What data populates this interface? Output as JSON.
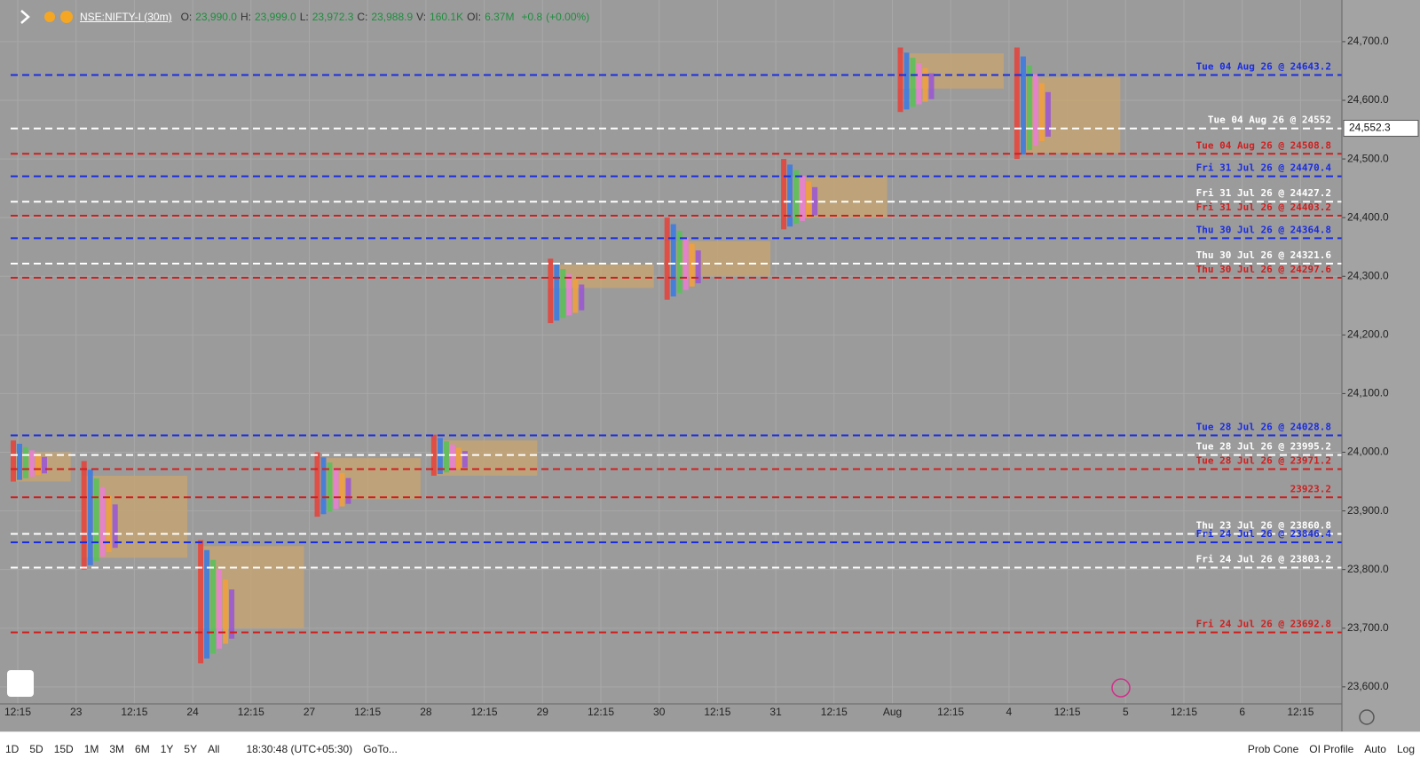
{
  "header": {
    "symbol": "NSE:NIFTY-I (30m)",
    "fields": [
      {
        "key": "O:",
        "value": "23,990.0"
      },
      {
        "key": "H:",
        "value": "23,999.0"
      },
      {
        "key": "L:",
        "value": "23,972.3"
      },
      {
        "key": "C:",
        "value": "23,988.9"
      },
      {
        "key": "V:",
        "value": "160.1K"
      },
      {
        "key": "OI:",
        "value": "6.37M"
      }
    ],
    "change": "+0.8",
    "change_pct": "(+0.00%)"
  },
  "price_axis": {
    "ylim": [
      23571,
      24771
    ],
    "ticks": [
      {
        "value": 24700,
        "label": "24,700.0"
      },
      {
        "value": 24600,
        "label": "24,600.0"
      },
      {
        "value": 24500,
        "label": "24,500.0"
      },
      {
        "value": 24400,
        "label": "24,400.0"
      },
      {
        "value": 24300,
        "label": "24,300.0"
      },
      {
        "value": 24200,
        "label": "24,200.0"
      },
      {
        "value": 24100,
        "label": "24,100.0"
      },
      {
        "value": 24000,
        "label": "24,000.0"
      },
      {
        "value": 23900,
        "label": "23,900.0"
      },
      {
        "value": 23800,
        "label": "23,800.0"
      },
      {
        "value": 23700,
        "label": "23,700.0"
      },
      {
        "value": 23600,
        "label": "23,600.0"
      }
    ],
    "current": {
      "value": 24552.3,
      "label": "24,552.3"
    }
  },
  "time_axis": [
    "12:15",
    "23",
    "12:15",
    "24",
    "12:15",
    "27",
    "12:15",
    "28",
    "12:15",
    "29",
    "12:15",
    "30",
    "12:15",
    "31",
    "12:15",
    "Aug",
    "12:15",
    "4",
    "12:15",
    "5",
    "12:15",
    "6",
    "12:15"
  ],
  "sessions": [
    {
      "high": 24020,
      "low": 23950,
      "vah": 24000,
      "val": 23950
    },
    {
      "high": 23985,
      "low": 23800,
      "vah": 23960,
      "val": 23820
    },
    {
      "high": 23850,
      "low": 23640,
      "vah": 23840,
      "val": 23700
    },
    {
      "high": 24000,
      "low": 23890,
      "vah": 23990,
      "val": 23920
    },
    {
      "high": 24030,
      "low": 23960,
      "vah": 24020,
      "val": 23960
    },
    {
      "high": 24330,
      "low": 24220,
      "vah": 24320,
      "val": 24280
    },
    {
      "high": 24400,
      "low": 24260,
      "vah": 24360,
      "val": 24300
    },
    {
      "high": 24500,
      "low": 24380,
      "vah": 24470,
      "val": 24400
    },
    {
      "high": 24690,
      "low": 24580,
      "vah": 24680,
      "val": 24620
    },
    {
      "high": 24690,
      "low": 24500,
      "vah": 24640,
      "val": 24510
    }
  ],
  "levels": [
    {
      "value": 24643.2,
      "label": "Tue 04 Aug 26 @ 24643.2",
      "color": "#1a2de0"
    },
    {
      "value": 24552,
      "label": "Tue 04 Aug 26 @ 24552",
      "color": "#ffffff"
    },
    {
      "value": 24508.8,
      "label": "Tue 04 Aug 26 @ 24508.8",
      "color": "#d01f1f"
    },
    {
      "value": 24470.4,
      "label": "Fri 31 Jul 26 @ 24470.4",
      "color": "#1a2de0"
    },
    {
      "value": 24427.2,
      "label": "Fri 31 Jul 26 @ 24427.2",
      "color": "#ffffff"
    },
    {
      "value": 24403.2,
      "label": "Fri 31 Jul 26 @ 24403.2",
      "color": "#d01f1f"
    },
    {
      "value": 24364.8,
      "label": "Thu 30 Jul 26 @ 24364.8",
      "color": "#1a2de0"
    },
    {
      "value": 24321.6,
      "label": "Thu 30 Jul 26 @ 24321.6",
      "color": "#ffffff"
    },
    {
      "value": 24297.6,
      "label": "Thu 30 Jul 26 @ 24297.6",
      "color": "#d01f1f"
    },
    {
      "value": 24028.8,
      "label": "Tue 28 Jul 26 @ 24028.8",
      "color": "#1a2de0"
    },
    {
      "value": 23995.2,
      "label": "Tue 28 Jul 26 @ 23995.2",
      "color": "#ffffff"
    },
    {
      "value": 23971.2,
      "label": "Tue 28 Jul 26 @ 23971.2",
      "color": "#d01f1f"
    },
    {
      "value": 23923.2,
      "label": "23923.2",
      "color": "#d01f1f"
    },
    {
      "value": 23860.8,
      "label": "Thu 23 Jul 26 @ 23860.8",
      "color": "#ffffff"
    },
    {
      "value": 23846.4,
      "label": "Fri 24 Jul 26 @ 23846.4",
      "color": "#1a2de0"
    },
    {
      "value": 23803.2,
      "label": "Fri 24 Jul 26 @ 23803.2",
      "color": "#ffffff"
    },
    {
      "value": 23692.8,
      "label": "Fri 24 Jul 26 @ 23692.8",
      "color": "#d01f1f"
    }
  ],
  "toolbar": {
    "ranges": [
      "1D",
      "5D",
      "15D",
      "1M",
      "3M",
      "6M",
      "1Y",
      "5Y",
      "All"
    ],
    "clock": "18:30:48 (UTC+05:30)",
    "goto": "GoTo...",
    "right": [
      "Prob Cone",
      "OI Profile",
      "Auto",
      "Log"
    ]
  }
}
